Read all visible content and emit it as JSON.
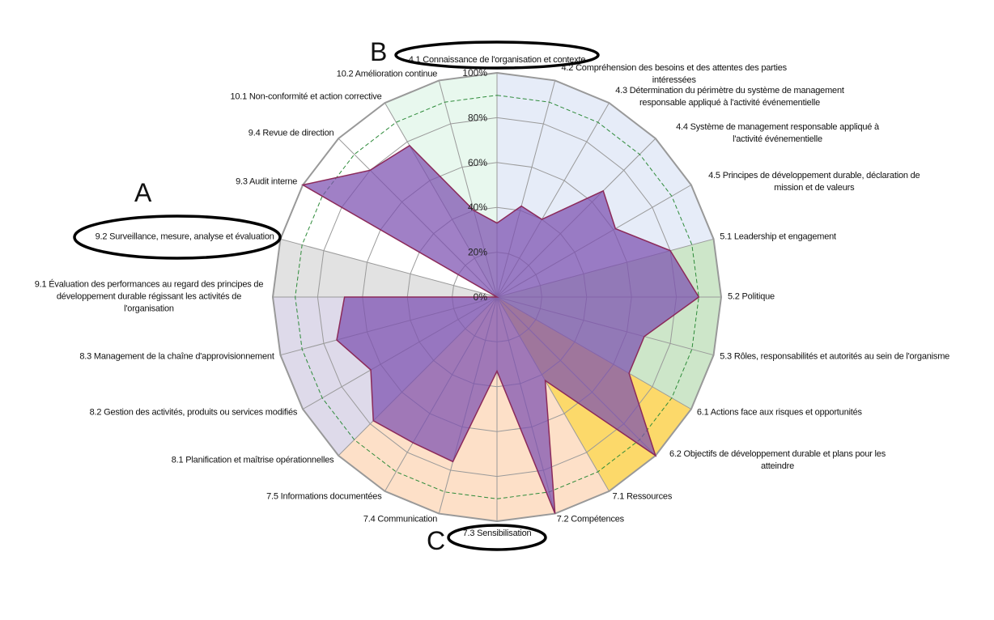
{
  "chart_data": {
    "type": "radar",
    "categories": [
      "4.1 Connaissance de l'organisation et contexte",
      "4.2 Compréhension des besoins et des attentes des parties intéressées",
      "4.3  Détermination du périmètre du système de management responsable appliqué à l'activité événementielle",
      "4.4 Système de management responsable appliqué à l'activité événementielle",
      "4.5 Principes de développement durable, déclaration de mission et de valeurs",
      "5.1 Leadership et engagement",
      "5.2 Politique",
      "5.3 Rôles, responsabilités et autorités au sein de l'organisme",
      "6.1 Actions face aux risques et opportunités",
      "6.2 Objectifs de développement durable et plans pour les atteindre",
      "7.1 Ressources",
      "7.2 Compétences",
      "7.3 Sensibilisation",
      "7.4 Communication",
      "7.5 Informations documentées",
      "8.1 Planification et maîtrise opérationnelles",
      "8.2 Gestion des activités, produits ou services modifiés",
      "8.3 Management de la chaîne d'approvisionnement",
      "9.1 Évaluation des performances  au regard des principes de développement  durable régissant  les activités  de l'organisation",
      "9.2 Surveillance, mesure, analyse et évaluation",
      "9.3 Audit interne",
      "9.4 Revue de direction",
      "10.1 Non-conformité et action corrective",
      "10.2  Amélioration continue"
    ],
    "sector_colors": [
      "#e6ecf8",
      "#e6ecf8",
      "#e6ecf8",
      "#e6ecf8",
      "#e6ecf8",
      "#cde6c9",
      "#cde6c9",
      "#cde6c9",
      "#fcd96a",
      "#fcd96a",
      "#fde0c8",
      "#fde0c8",
      "#fde0c8",
      "#fde0c8",
      "#fde0c8",
      "#dedaea",
      "#dedaea",
      "#dedaea",
      "#e2e2e2",
      "#ffffff",
      "#ffffff",
      "#ffffff",
      "#e8f8ee",
      "#e8f8ee"
    ],
    "series": [
      {
        "color": "#7b4fb0",
        "values": [
          33,
          42,
          40,
          67,
          61,
          80,
          90,
          68,
          68,
          100,
          43,
          100,
          33,
          76,
          75,
          78,
          65,
          74,
          68,
          0,
          100,
          80,
          78,
          40
        ]
      }
    ],
    "ylim": [
      0,
      100
    ],
    "yticks": [
      {
        "value": 0,
        "label": "0%"
      },
      {
        "value": 20,
        "label": "20%"
      },
      {
        "value": 40,
        "label": "40%"
      },
      {
        "value": 60,
        "label": "60%"
      },
      {
        "value": 80,
        "label": "80%"
      },
      {
        "value": 100,
        "label": "100%"
      }
    ],
    "target": 90,
    "annotations": [
      "A",
      "B",
      "C"
    ]
  }
}
